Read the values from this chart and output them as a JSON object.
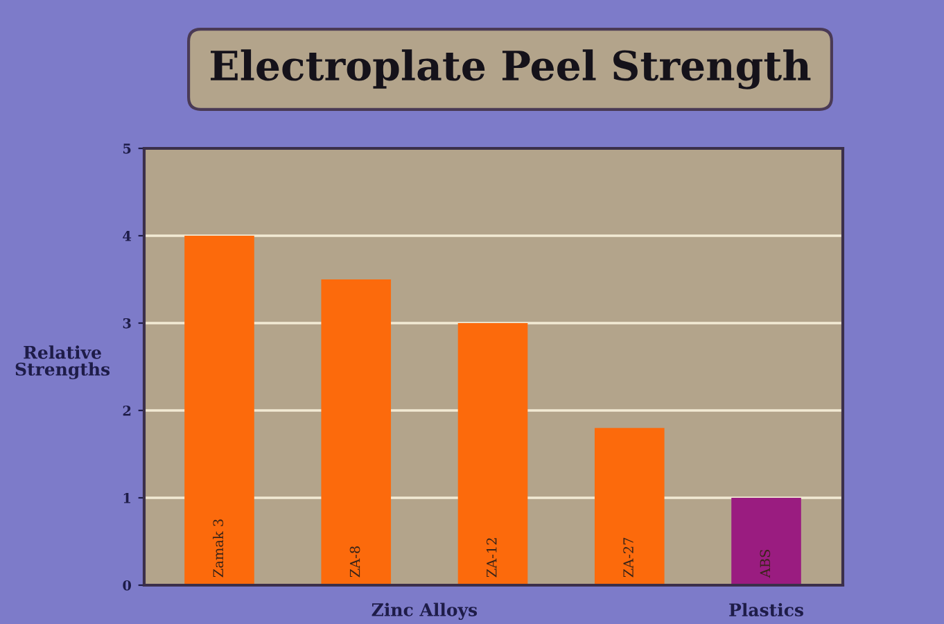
{
  "chart_data": {
    "type": "bar",
    "title": "Electroplate Peel Strength",
    "ylabel": "Relative Strengths",
    "categories": [
      "Zamak 3",
      "ZA-8",
      "ZA-12",
      "ZA-27",
      "ABS"
    ],
    "values": [
      4.0,
      3.5,
      3.0,
      1.8,
      1.0
    ],
    "colors": [
      "#fc6a0c",
      "#fc6a0c",
      "#fc6a0c",
      "#fc6a0c",
      "#9a1c80"
    ],
    "ylim": [
      0,
      5
    ],
    "yticks": [
      0,
      1,
      2,
      3,
      4,
      5
    ],
    "grid": "y",
    "annotations": [
      "Zinc Alloys",
      "Plastics"
    ]
  }
}
